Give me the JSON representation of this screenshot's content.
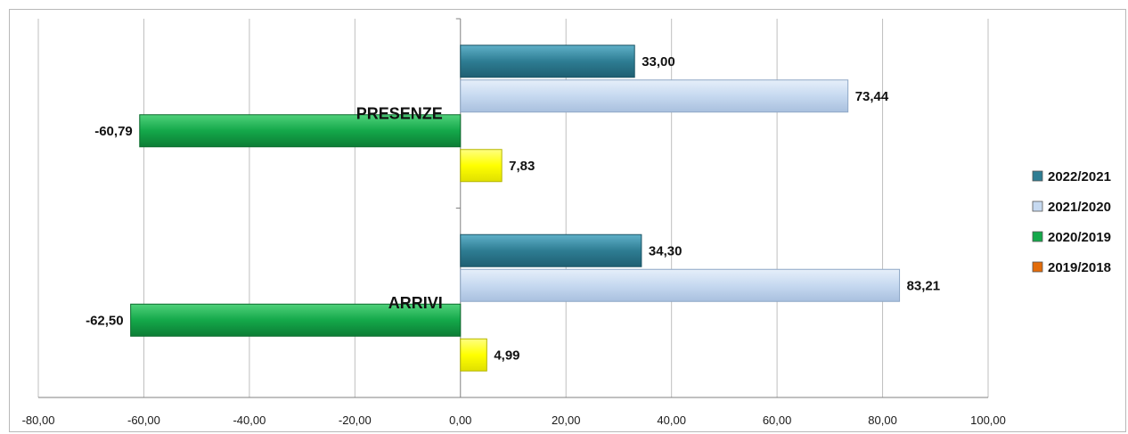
{
  "chart_data": {
    "type": "bar",
    "orientation": "horizontal",
    "categories": [
      "PRESENZE",
      "ARRIVI"
    ],
    "series": [
      {
        "name": "2022/2021",
        "values": [
          33.0,
          34.3
        ],
        "labels": [
          "33,00",
          "34,30"
        ],
        "color": "#2e7d93"
      },
      {
        "name": "2021/2020",
        "values": [
          73.44,
          83.21
        ],
        "labels": [
          "73,44",
          "83,21"
        ],
        "color": "#c6d9f0"
      },
      {
        "name": "2020/2019",
        "values": [
          -60.79,
          -62.5
        ],
        "labels": [
          "-60,79",
          "-62,50"
        ],
        "color": "#14a84a"
      },
      {
        "name": "2019/2018",
        "values": [
          7.83,
          4.99
        ],
        "labels": [
          "7,83",
          "4,99"
        ],
        "color": "#ffff00",
        "legend_color": "#e36c0a"
      }
    ],
    "xlim": [
      -80,
      100
    ],
    "x_ticks": [
      -80,
      -60,
      -40,
      -20,
      0,
      20,
      40,
      60,
      80,
      100
    ],
    "x_tick_labels": [
      "-80,00",
      "-60,00",
      "-40,00",
      "-20,00",
      "0,00",
      "20,00",
      "40,00",
      "60,00",
      "80,00",
      "100,00"
    ],
    "grid": "vertical",
    "legend_position": "right",
    "title": "",
    "xlabel": "",
    "ylabel": ""
  }
}
